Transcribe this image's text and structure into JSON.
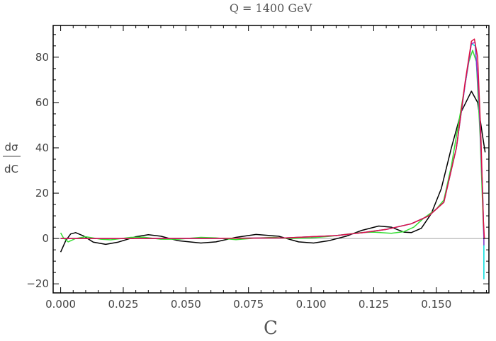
{
  "chart_data": {
    "type": "line",
    "title": "Q = 1400 GeV",
    "xlabel": "C",
    "ylabel_num": "dσ",
    "ylabel_den": "dC",
    "xlim": [
      -0.003,
      0.171
    ],
    "ylim": [
      -24,
      94
    ],
    "xticks": [
      0.0,
      0.025,
      0.05,
      0.075,
      0.1,
      0.125,
      0.15
    ],
    "xtick_labels": [
      "0.000",
      "0.025",
      "0.050",
      "0.075",
      "0.100",
      "0.125",
      "0.150"
    ],
    "yticks": [
      -20,
      0,
      20,
      40,
      60,
      80
    ],
    "ytick_labels": [
      "−20",
      "0",
      "20",
      "40",
      "60",
      "80"
    ],
    "grid": false,
    "series": [
      {
        "color": "#000000",
        "points": [
          [
            0.0,
            -6
          ],
          [
            0.002,
            -1
          ],
          [
            0.004,
            2
          ],
          [
            0.006,
            2.6
          ],
          [
            0.009,
            1.2
          ],
          [
            0.013,
            -1.6
          ],
          [
            0.018,
            -2.6
          ],
          [
            0.023,
            -1.6
          ],
          [
            0.03,
            0.8
          ],
          [
            0.035,
            1.7
          ],
          [
            0.04,
            1.0
          ],
          [
            0.047,
            -1.0
          ],
          [
            0.056,
            -2.0
          ],
          [
            0.062,
            -1.5
          ],
          [
            0.07,
            0.5
          ],
          [
            0.078,
            1.8
          ],
          [
            0.087,
            1.0
          ],
          [
            0.095,
            -1.5
          ],
          [
            0.101,
            -2.0
          ],
          [
            0.107,
            -1.0
          ],
          [
            0.114,
            1.0
          ],
          [
            0.12,
            3.5
          ],
          [
            0.127,
            5.5
          ],
          [
            0.132,
            5.0
          ],
          [
            0.137,
            2.8
          ],
          [
            0.14,
            2.6
          ],
          [
            0.144,
            4.5
          ],
          [
            0.148,
            11
          ],
          [
            0.152,
            22
          ],
          [
            0.156,
            40
          ],
          [
            0.16,
            56
          ],
          [
            0.164,
            65
          ],
          [
            0.1665,
            60
          ],
          [
            0.1685,
            45
          ],
          [
            0.1695,
            38
          ]
        ]
      },
      {
        "color": "#33dd33",
        "points": [
          [
            0.0,
            2.5
          ],
          [
            0.001,
            0.5
          ],
          [
            0.003,
            -1.5
          ],
          [
            0.006,
            0
          ],
          [
            0.01,
            0.8
          ],
          [
            0.016,
            -0.3
          ],
          [
            0.02,
            -0.6
          ],
          [
            0.028,
            0.5
          ],
          [
            0.033,
            0.6
          ],
          [
            0.04,
            -0.3
          ],
          [
            0.047,
            -0.3
          ],
          [
            0.056,
            0.5
          ],
          [
            0.062,
            0.3
          ],
          [
            0.07,
            -0.5
          ],
          [
            0.078,
            0.2
          ],
          [
            0.085,
            0.5
          ],
          [
            0.092,
            0
          ],
          [
            0.1,
            0.3
          ],
          [
            0.108,
            1.0
          ],
          [
            0.115,
            2.0
          ],
          [
            0.12,
            2.6
          ],
          [
            0.125,
            2.8
          ],
          [
            0.132,
            2.3
          ],
          [
            0.137,
            3.0
          ],
          [
            0.141,
            5.0
          ],
          [
            0.145,
            9.0
          ],
          [
            0.15,
            13
          ],
          [
            0.153,
            17
          ],
          [
            0.156,
            32
          ],
          [
            0.16,
            58
          ],
          [
            0.163,
            78
          ],
          [
            0.1645,
            83
          ],
          [
            0.166,
            78
          ],
          [
            0.1675,
            45
          ],
          [
            0.1688,
            5
          ],
          [
            0.1692,
            0
          ]
        ]
      },
      {
        "color": "#00dddd",
        "points": [
          [
            0.0,
            0
          ],
          [
            0.03,
            0
          ],
          [
            0.06,
            0.05
          ],
          [
            0.09,
            0.3
          ],
          [
            0.11,
            1.3
          ],
          [
            0.12,
            2.5
          ],
          [
            0.13,
            4.0
          ],
          [
            0.14,
            6.5
          ],
          [
            0.147,
            10
          ],
          [
            0.153,
            16
          ],
          [
            0.158,
            40
          ],
          [
            0.1615,
            68
          ],
          [
            0.164,
            86
          ],
          [
            0.1655,
            85
          ],
          [
            0.167,
            62
          ],
          [
            0.1685,
            20
          ],
          [
            0.169,
            -2
          ],
          [
            0.169,
            -18
          ]
        ]
      },
      {
        "color": "#9933cc",
        "points": [
          [
            0.0,
            0
          ],
          [
            0.03,
            0
          ],
          [
            0.06,
            0.05
          ],
          [
            0.09,
            0.3
          ],
          [
            0.11,
            1.3
          ],
          [
            0.12,
            2.5
          ],
          [
            0.13,
            4.0
          ],
          [
            0.14,
            6.5
          ],
          [
            0.147,
            10
          ],
          [
            0.153,
            16
          ],
          [
            0.158,
            40
          ],
          [
            0.1615,
            68
          ],
          [
            0.164,
            86
          ],
          [
            0.1655,
            86.5
          ],
          [
            0.167,
            62
          ],
          [
            0.1685,
            20
          ],
          [
            0.169,
            0
          ],
          [
            0.169,
            -3
          ]
        ]
      },
      {
        "color": "#dd1144",
        "points": [
          [
            0.0,
            0
          ],
          [
            0.03,
            0
          ],
          [
            0.06,
            0.05
          ],
          [
            0.09,
            0.3
          ],
          [
            0.11,
            1.3
          ],
          [
            0.12,
            2.5
          ],
          [
            0.13,
            4.0
          ],
          [
            0.14,
            6.5
          ],
          [
            0.147,
            10
          ],
          [
            0.153,
            16
          ],
          [
            0.158,
            40
          ],
          [
            0.1615,
            69
          ],
          [
            0.164,
            87
          ],
          [
            0.1652,
            88
          ],
          [
            0.1665,
            80
          ],
          [
            0.1678,
            45
          ],
          [
            0.1688,
            8
          ],
          [
            0.1692,
            0
          ]
        ]
      }
    ]
  }
}
